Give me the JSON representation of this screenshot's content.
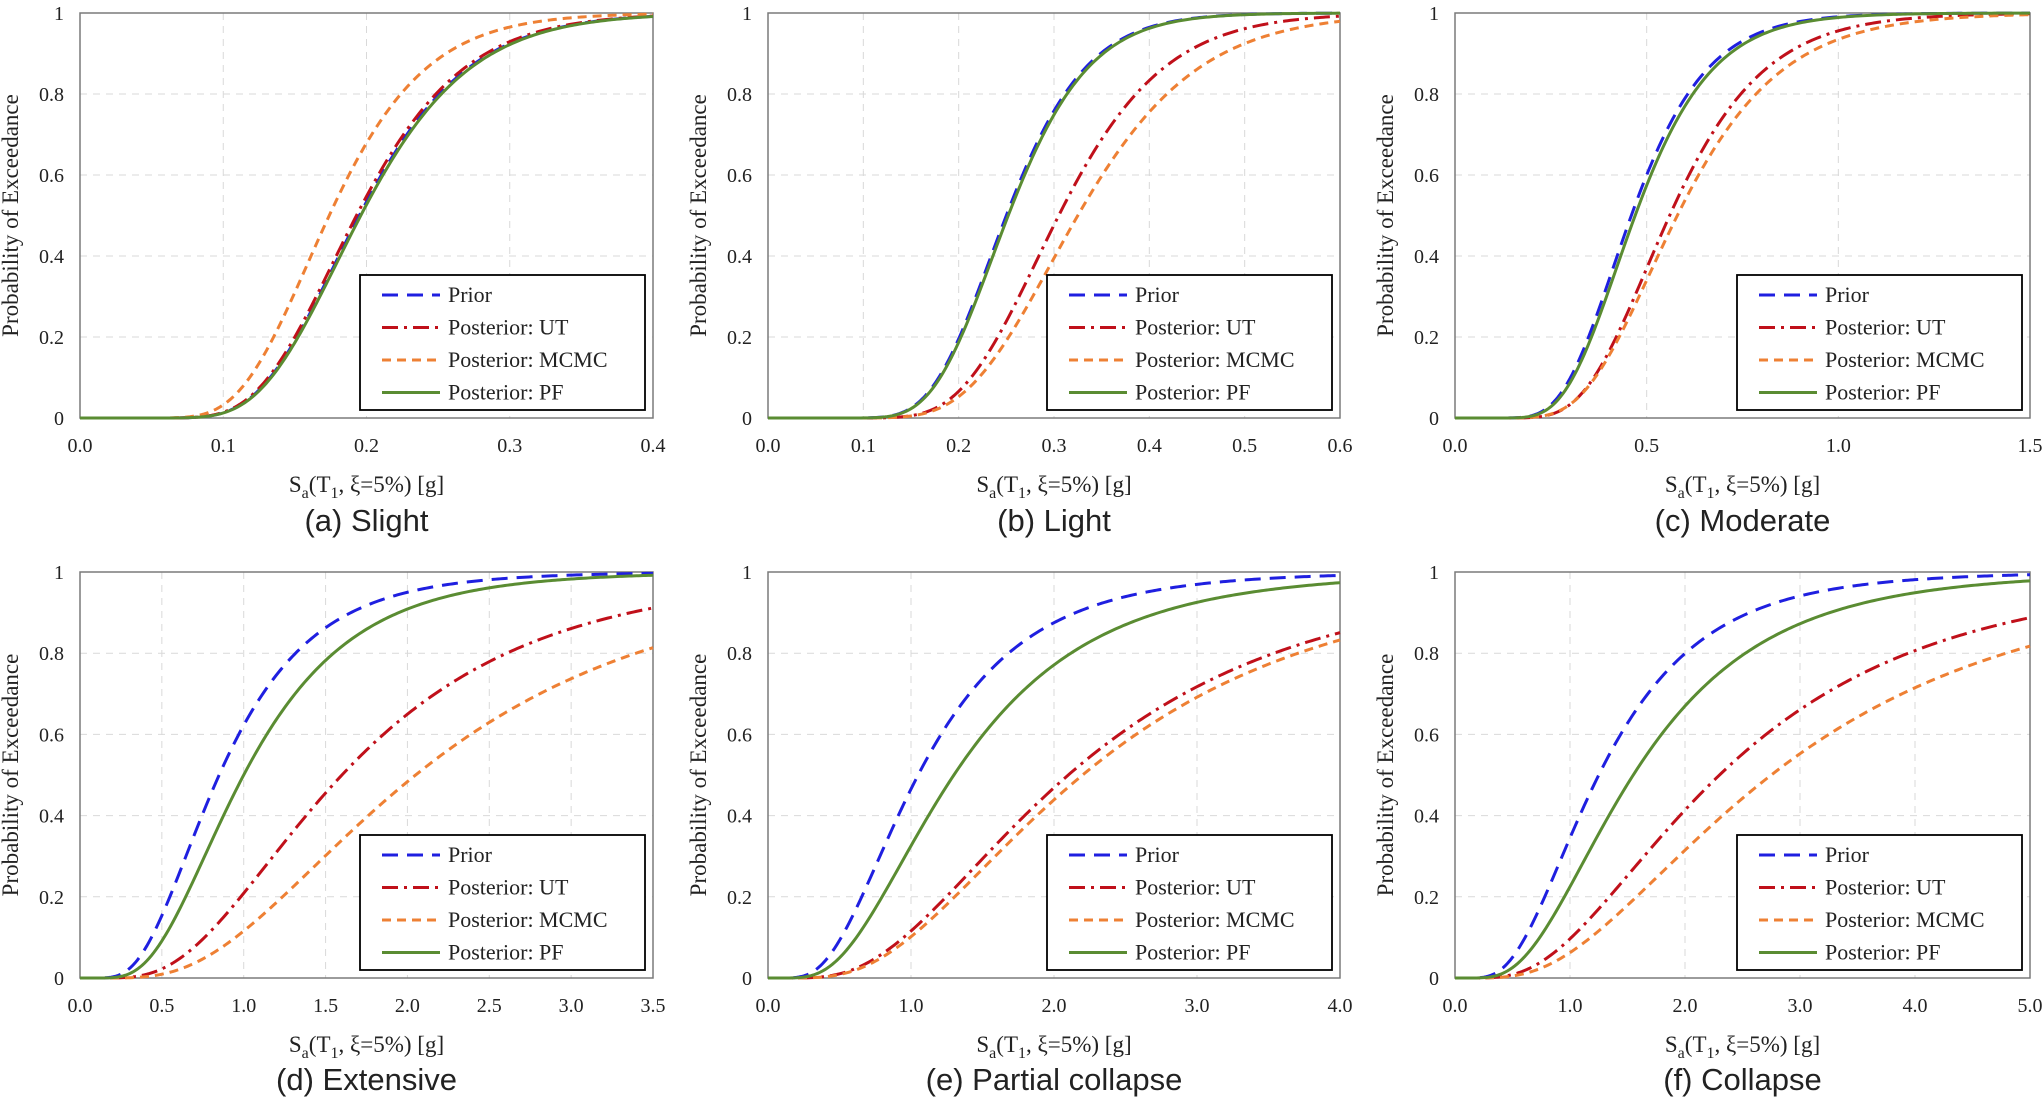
{
  "chart_data": [
    {
      "type": "line",
      "caption": "(a) Slight",
      "xlabel_main": "S",
      "xlabel_sub": "a",
      "xlabel_mid": "(T",
      "xlabel_sub2": "1",
      "xlabel_end": ", ξ=5%) [g]",
      "ylabel": "Probability of Exceedance",
      "xlim": [
        0,
        0.4
      ],
      "ylim": [
        0,
        1
      ],
      "x_ticks": [
        0,
        0.1,
        0.2,
        0.3,
        0.4
      ],
      "x_tick_labels": [
        "0.0",
        "0.1",
        "0.2",
        "0.3",
        "0.4"
      ],
      "y_ticks": [
        0,
        0.2,
        0.4,
        0.6,
        0.8,
        1
      ],
      "y_tick_labels": [
        "0",
        "0.2",
        "0.4",
        "0.6",
        "0.8",
        "1"
      ],
      "legend_position": "lower-right",
      "series": [
        {
          "name": "Prior",
          "median": 0.195,
          "beta": 0.3
        },
        {
          "name": "Posterior: UT",
          "median": 0.193,
          "beta": 0.3
        },
        {
          "name": "Posterior: MCMC",
          "median": 0.174,
          "beta": 0.3
        },
        {
          "name": "Posterior: PF",
          "median": 0.196,
          "beta": 0.3
        }
      ]
    },
    {
      "type": "line",
      "caption": "(b) Light",
      "xlabel_main": "S",
      "xlabel_sub": "a",
      "xlabel_mid": "(T",
      "xlabel_sub2": "1",
      "xlabel_end": ", ξ=5%) [g]",
      "ylabel": "Probability of Exceedance",
      "xlim": [
        0,
        0.6
      ],
      "ylim": [
        0,
        1
      ],
      "x_ticks": [
        0,
        0.1,
        0.2,
        0.3,
        0.4,
        0.5,
        0.6
      ],
      "x_tick_labels": [
        "0.0",
        "0.1",
        "0.2",
        "0.3",
        "0.4",
        "0.5",
        "0.6"
      ],
      "y_ticks": [
        0,
        0.2,
        0.4,
        0.6,
        0.8,
        1
      ],
      "y_tick_labels": [
        "0",
        "0.2",
        "0.4",
        "0.6",
        "0.8",
        "1"
      ],
      "legend_position": "lower-right",
      "series": [
        {
          "name": "Prior",
          "median": 0.25,
          "beta": 0.26
        },
        {
          "name": "Posterior: UT",
          "median": 0.305,
          "beta": 0.28
        },
        {
          "name": "Posterior: MCMC",
          "median": 0.325,
          "beta": 0.3
        },
        {
          "name": "Posterior: PF",
          "median": 0.252,
          "beta": 0.26
        }
      ]
    },
    {
      "type": "line",
      "caption": "(c) Moderate",
      "xlabel_main": "S",
      "xlabel_sub": "a",
      "xlabel_mid": "(T",
      "xlabel_sub2": "1",
      "xlabel_end": ", ξ=5%) [g]",
      "ylabel": "Probability of Exceedance",
      "xlim": [
        0,
        1.5
      ],
      "ylim": [
        0,
        1
      ],
      "x_ticks": [
        0,
        0.5,
        1.0,
        1.5
      ],
      "x_tick_labels": [
        "0.0",
        "0.5",
        "1.0",
        "1.5"
      ],
      "y_ticks": [
        0,
        0.2,
        0.4,
        0.6,
        0.8,
        1
      ],
      "y_tick_labels": [
        "0",
        "0.2",
        "0.4",
        "0.6",
        "0.8",
        "1"
      ],
      "legend_position": "lower-right",
      "series": [
        {
          "name": "Prior",
          "median": 0.46,
          "beta": 0.33
        },
        {
          "name": "Posterior: UT",
          "median": 0.56,
          "beta": 0.34
        },
        {
          "name": "Posterior: MCMC",
          "median": 0.58,
          "beta": 0.36
        },
        {
          "name": "Posterior: PF",
          "median": 0.47,
          "beta": 0.33
        }
      ]
    },
    {
      "type": "line",
      "caption": "(d) Extensive",
      "xlabel_main": "S",
      "xlabel_sub": "a",
      "xlabel_mid": "(T",
      "xlabel_sub2": "1",
      "xlabel_end": ", ξ=5%) [g]",
      "ylabel": "Probability of Exceedance",
      "xlim": [
        0,
        3.5
      ],
      "ylim": [
        0,
        1
      ],
      "x_ticks": [
        0,
        0.5,
        1.0,
        1.5,
        2.0,
        2.5,
        3.0,
        3.5
      ],
      "x_tick_labels": [
        "0.0",
        "0.5",
        "1.0",
        "1.5",
        "2.0",
        "2.5",
        "3.0",
        "3.5"
      ],
      "y_ticks": [
        0,
        0.2,
        0.4,
        0.6,
        0.8,
        1
      ],
      "y_tick_labels": [
        "0",
        "0.2",
        "0.4",
        "0.6",
        "0.8",
        "1"
      ],
      "legend_position": "lower-right",
      "series": [
        {
          "name": "Prior",
          "median": 0.85,
          "beta": 0.52
        },
        {
          "name": "Posterior: UT",
          "median": 1.6,
          "beta": 0.58
        },
        {
          "name": "Posterior: MCMC",
          "median": 2.05,
          "beta": 0.6
        },
        {
          "name": "Posterior: PF",
          "median": 1.0,
          "beta": 0.52
        }
      ]
    },
    {
      "type": "line",
      "caption": "(e) Partial collapse",
      "xlabel_main": "S",
      "xlabel_sub": "a",
      "xlabel_mid": "(T",
      "xlabel_sub2": "1",
      "xlabel_end": ", ξ=5%) [g]",
      "ylabel": "Probability of Exceedance",
      "xlim": [
        0,
        4.0
      ],
      "ylim": [
        0,
        1
      ],
      "x_ticks": [
        0,
        1.0,
        2.0,
        3.0,
        4.0
      ],
      "x_tick_labels": [
        "0.0",
        "1.0",
        "2.0",
        "3.0",
        "4.0"
      ],
      "y_ticks": [
        0,
        0.2,
        0.4,
        0.6,
        0.8,
        1
      ],
      "y_tick_labels": [
        "0",
        "0.2",
        "0.4",
        "0.6",
        "0.8",
        "1"
      ],
      "legend_position": "lower-right",
      "series": [
        {
          "name": "Prior",
          "median": 1.05,
          "beta": 0.56
        },
        {
          "name": "Posterior: UT",
          "median": 2.1,
          "beta": 0.62
        },
        {
          "name": "Posterior: MCMC",
          "median": 2.2,
          "beta": 0.62
        },
        {
          "name": "Posterior: PF",
          "median": 1.3,
          "beta": 0.58
        }
      ]
    },
    {
      "type": "line",
      "caption": "(f) Collapse",
      "xlabel_main": "S",
      "xlabel_sub": "a",
      "xlabel_mid": "(T",
      "xlabel_sub2": "1",
      "xlabel_end": ", ξ=5%) [g]",
      "ylabel": "Probability of Exceedance",
      "xlim": [
        0,
        5.0
      ],
      "ylim": [
        0,
        1
      ],
      "x_ticks": [
        0,
        1.0,
        2.0,
        3.0,
        4.0,
        5.0
      ],
      "x_tick_labels": [
        "0.0",
        "1.0",
        "2.0",
        "3.0",
        "4.0",
        "5.0"
      ],
      "y_ticks": [
        0,
        0.2,
        0.4,
        0.6,
        0.8,
        1
      ],
      "y_tick_labels": [
        "0",
        "0.2",
        "0.4",
        "0.6",
        "0.8",
        "1"
      ],
      "legend_position": "lower-right",
      "series": [
        {
          "name": "Prior",
          "median": 1.25,
          "beta": 0.56
        },
        {
          "name": "Posterior: UT",
          "median": 2.3,
          "beta": 0.64
        },
        {
          "name": "Posterior: MCMC",
          "median": 2.75,
          "beta": 0.66
        },
        {
          "name": "Posterior: PF",
          "median": 1.55,
          "beta": 0.58
        }
      ]
    }
  ],
  "series_styles": [
    {
      "name": "Prior",
      "color": "#1f1fe0",
      "dash": "dashed"
    },
    {
      "name": "Posterior: UT",
      "color": "#c0101a",
      "dash": "dash-dot"
    },
    {
      "name": "Posterior: MCMC",
      "color": "#ee8034",
      "dash": "short-dashed"
    },
    {
      "name": "Posterior: PF",
      "color": "#5a8c32",
      "dash": "solid"
    }
  ]
}
